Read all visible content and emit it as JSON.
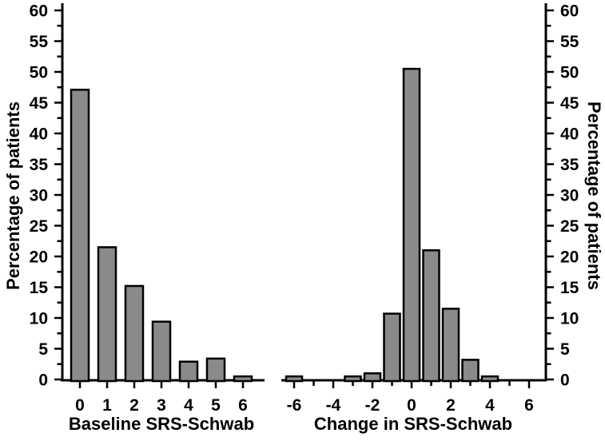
{
  "figure": {
    "background": "#ffffff",
    "axis_color": "#000000",
    "bar_fill": "#8a8a8a",
    "bar_border": "#000000"
  },
  "chart_data": [
    {
      "id": "baseline-histogram",
      "type": "bar",
      "title": "",
      "xlabel": "Baseline SRS-Schwab",
      "ylabel": "Percentage of patients",
      "categories": [
        "0",
        "1",
        "2",
        "3",
        "4",
        "5",
        "6"
      ],
      "values": [
        47.1,
        21.5,
        15.2,
        9.4,
        2.9,
        3.4,
        0.5
      ],
      "ylim": [
        0,
        60
      ],
      "y_major_step": 5,
      "y_minor_step": 2.5,
      "y_tick_labels": [
        "0",
        "5",
        "10",
        "15",
        "20",
        "25",
        "30",
        "35",
        "40",
        "45",
        "50",
        "55",
        "60"
      ],
      "x_tick_labels": [
        "0",
        "1",
        "2",
        "3",
        "4",
        "5",
        "6"
      ],
      "yaxis_side": "left",
      "grid": false,
      "legend": "none"
    },
    {
      "id": "change-histogram",
      "type": "bar",
      "title": "",
      "xlabel": "Change in SRS-Schwab",
      "ylabel": "Percentage of patients",
      "categories": [
        "-6",
        "-5",
        "-4",
        "-3",
        "-2",
        "-1",
        "0",
        "1",
        "2",
        "3",
        "4",
        "5",
        "6"
      ],
      "values": [
        0.5,
        0,
        0,
        0.5,
        1.0,
        10.7,
        50.5,
        21.0,
        11.5,
        3.2,
        0.5,
        0,
        0
      ],
      "ylim": [
        0,
        60
      ],
      "y_major_step": 5,
      "y_minor_step": 2.5,
      "y_tick_labels": [
        "0",
        "5",
        "10",
        "15",
        "20",
        "25",
        "30",
        "35",
        "40",
        "45",
        "50",
        "55",
        "60"
      ],
      "x_tick_labels": [
        "-6",
        "-4",
        "-2",
        "0",
        "2",
        "4",
        "6"
      ],
      "x_labeled_every": 2,
      "yaxis_side": "right",
      "grid": false,
      "legend": "none"
    }
  ]
}
